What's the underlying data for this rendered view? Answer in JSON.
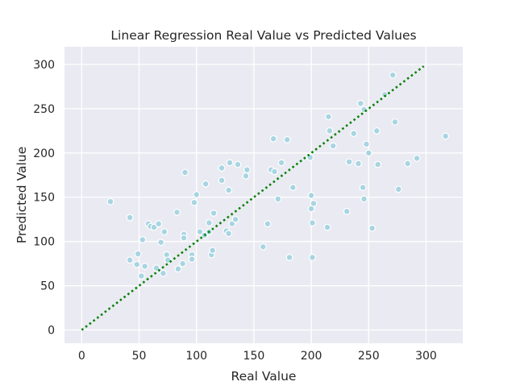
{
  "chart_data": {
    "type": "scatter",
    "title": "Linear Regression Real Value vs Predicted Values",
    "xlabel": "Real Value",
    "ylabel": "Predicted Value",
    "xlim": [
      -15,
      332
    ],
    "ylim": [
      -15,
      320
    ],
    "xticks": [
      0,
      50,
      100,
      150,
      200,
      250,
      300
    ],
    "yticks": [
      0,
      50,
      100,
      150,
      200,
      250,
      300
    ],
    "xtick_labels": [
      "0",
      "50",
      "100",
      "150",
      "200",
      "250",
      "300"
    ],
    "ytick_labels": [
      "0",
      "50",
      "100",
      "150",
      "200",
      "250",
      "300"
    ],
    "grid": true,
    "background": "#eaeaf2",
    "point_color": "#a8d5e2",
    "line_color": "#008000",
    "reference_line": {
      "x": [
        0,
        298
      ],
      "y": [
        0,
        298
      ],
      "style": "dotted"
    },
    "points": [
      [
        25,
        145
      ],
      [
        42,
        127
      ],
      [
        42,
        79
      ],
      [
        48,
        74
      ],
      [
        49,
        86
      ],
      [
        52,
        61
      ],
      [
        53,
        102
      ],
      [
        55,
        72
      ],
      [
        58,
        120
      ],
      [
        60,
        117
      ],
      [
        63,
        116
      ],
      [
        65,
        70
      ],
      [
        67,
        120
      ],
      [
        69,
        99
      ],
      [
        71,
        64
      ],
      [
        72,
        111
      ],
      [
        74,
        85
      ],
      [
        75,
        79
      ],
      [
        84,
        69
      ],
      [
        83,
        133
      ],
      [
        88,
        75
      ],
      [
        89,
        108
      ],
      [
        89,
        104
      ],
      [
        90,
        178
      ],
      [
        96,
        85
      ],
      [
        96,
        80
      ],
      [
        98,
        144
      ],
      [
        100,
        153
      ],
      [
        103,
        111
      ],
      [
        107,
        107
      ],
      [
        108,
        165
      ],
      [
        111,
        111
      ],
      [
        111,
        121
      ],
      [
        113,
        85
      ],
      [
        114,
        90
      ],
      [
        115,
        132
      ],
      [
        122,
        169
      ],
      [
        122,
        183
      ],
      [
        126,
        112
      ],
      [
        128,
        109
      ],
      [
        128,
        158
      ],
      [
        129,
        189
      ],
      [
        131,
        120
      ],
      [
        134,
        125
      ],
      [
        136,
        187
      ],
      [
        143,
        174
      ],
      [
        144,
        181
      ],
      [
        158,
        94
      ],
      [
        162,
        120
      ],
      [
        165,
        181
      ],
      [
        167,
        216
      ],
      [
        168,
        179
      ],
      [
        171,
        148
      ],
      [
        174,
        189
      ],
      [
        179,
        215
      ],
      [
        181,
        82
      ],
      [
        184,
        161
      ],
      [
        198,
        196
      ],
      [
        199,
        195
      ],
      [
        200,
        152
      ],
      [
        200,
        137
      ],
      [
        201,
        121
      ],
      [
        201,
        82
      ],
      [
        202,
        143
      ],
      [
        214,
        116
      ],
      [
        215,
        241
      ],
      [
        216,
        225
      ],
      [
        219,
        208
      ],
      [
        231,
        134
      ],
      [
        233,
        190
      ],
      [
        237,
        222
      ],
      [
        241,
        188
      ],
      [
        243,
        256
      ],
      [
        245,
        161
      ],
      [
        246,
        148
      ],
      [
        246,
        249
      ],
      [
        248,
        210
      ],
      [
        250,
        200
      ],
      [
        253,
        115
      ],
      [
        257,
        225
      ],
      [
        258,
        187
      ],
      [
        264,
        266
      ],
      [
        271,
        288
      ],
      [
        273,
        235
      ],
      [
        276,
        159
      ],
      [
        284,
        188
      ],
      [
        292,
        194
      ],
      [
        317,
        219
      ]
    ]
  }
}
